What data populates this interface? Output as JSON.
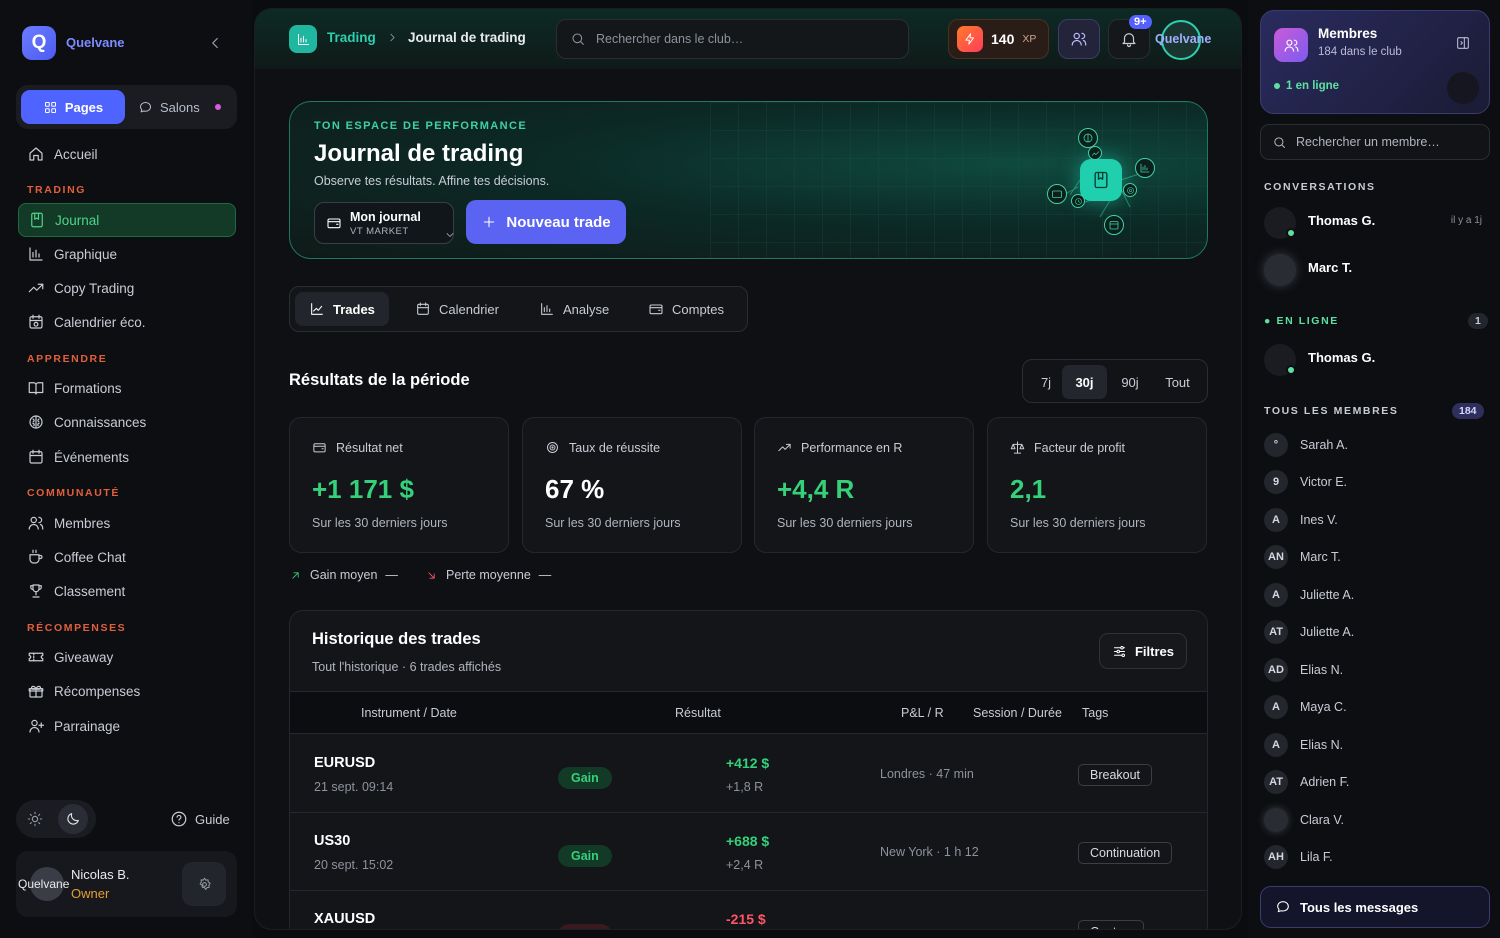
{
  "sidebar": {
    "brand": "Quelvane",
    "seg_pages": "Pages",
    "seg_salons": "Salons",
    "home": "Accueil",
    "sections": [
      {
        "title": "TRADING",
        "items": [
          "Journal",
          "Graphique",
          "Copy Trading",
          "Calendrier éco."
        ]
      },
      {
        "title": "APPRENDRE",
        "items": [
          "Formations",
          "Connaissances",
          "Événements"
        ]
      },
      {
        "title": "COMMUNAUTÉ",
        "items": [
          "Membres",
          "Coffee Chat",
          "Classement"
        ]
      },
      {
        "title": "RÉCOMPENSES",
        "items": [
          "Giveaway",
          "Récompenses",
          "Parrainage"
        ]
      }
    ],
    "guide": "Guide",
    "user": {
      "avatar_text": "Quelvane",
      "name": "Nicolas B.",
      "role": "Owner"
    }
  },
  "topbar": {
    "crumb_parent": "Trading",
    "crumb_current": "Journal de trading",
    "search_placeholder": "Rechercher dans le club…",
    "xp_value": "140",
    "xp_label": "XP",
    "notif_badge": "9+",
    "avatar_text": "Quelvane"
  },
  "hero": {
    "kicker": "TON ESPACE DE PERFORMANCE",
    "title": "Journal de trading",
    "subtitle": "Observe tes résultats. Affine tes décisions.",
    "journal_name": "Mon journal",
    "journal_broker": "VT MARKET",
    "new_trade": "Nouveau trade"
  },
  "tabs": [
    "Trades",
    "Calendrier",
    "Analyse",
    "Comptes"
  ],
  "period": {
    "title": "Résultats de la période",
    "options": [
      "7j",
      "30j",
      "90j",
      "Tout"
    ],
    "selected": "30j"
  },
  "stats": [
    {
      "label": "Résultat net",
      "value": "+1 171 $",
      "sub": "Sur les 30 derniers jours"
    },
    {
      "label": "Taux de réussite",
      "value": "67 %",
      "sub": "Sur les 30 derniers jours"
    },
    {
      "label": "Performance en R",
      "value": "+4,4 R",
      "sub": "Sur les 30 derniers jours"
    },
    {
      "label": "Facteur de profit",
      "value": "2,1",
      "sub": "Sur les 30 derniers jours"
    }
  ],
  "averages": {
    "gain_label": "Gain moyen",
    "gain_value": "—",
    "loss_label": "Perte moyenne",
    "loss_value": "—"
  },
  "history": {
    "title": "Historique des trades",
    "subtitle": "Tout l'historique · 6 trades affichés",
    "filters": "Filtres",
    "columns": [
      "Instrument / Date",
      "Résultat",
      "P&L / R",
      "Session / Durée",
      "Tags"
    ],
    "rows": [
      {
        "instrument": "EURUSD",
        "date": "21 sept. 09:14",
        "result": "Gain",
        "pl": "+412 $",
        "r": "+1,8 R",
        "session": "Londres · 47 min",
        "tag": "Breakout"
      },
      {
        "instrument": "US30",
        "date": "20 sept. 15:02",
        "result": "Gain",
        "pl": "+688 $",
        "r": "+2,4 R",
        "session": "New York · 1 h 12",
        "tag": "Continuation"
      },
      {
        "instrument": "XAUUSD",
        "date": "",
        "result": "",
        "pl": "-215 $",
        "r": "",
        "session": "",
        "tag": "Contre-"
      }
    ]
  },
  "right": {
    "members_title": "Membres",
    "members_sub": "184 dans le club",
    "online_text": "1 en ligne",
    "search_placeholder": "Rechercher un membre…",
    "conv_title": "CONVERSATIONS",
    "conversations": [
      {
        "name": "Thomas G.",
        "time": "il y a 1j"
      },
      {
        "name": "Marc T.",
        "time": ""
      }
    ],
    "online_title": "EN LIGNE",
    "online_count": "1",
    "online_members": [
      {
        "name": "Thomas G."
      }
    ],
    "all_title": "TOUS LES MEMBRES",
    "all_count": "184",
    "members": [
      {
        "initials": "°",
        "name": "Sarah A."
      },
      {
        "initials": "9",
        "name": "Victor E."
      },
      {
        "initials": "A",
        "name": "Ines V."
      },
      {
        "initials": "AN",
        "name": "Marc T."
      },
      {
        "initials": "A",
        "name": "Juliette A."
      },
      {
        "initials": "AT",
        "name": "Juliette A."
      },
      {
        "initials": "AD",
        "name": "Elias N."
      },
      {
        "initials": "A",
        "name": "Maya C."
      },
      {
        "initials": "A",
        "name": "Elias N."
      },
      {
        "initials": "AT",
        "name": "Adrien F."
      },
      {
        "initials": "",
        "name": "Clara V."
      },
      {
        "initials": "AH",
        "name": "Lila F."
      }
    ],
    "all_messages": "Tous les messages"
  }
}
